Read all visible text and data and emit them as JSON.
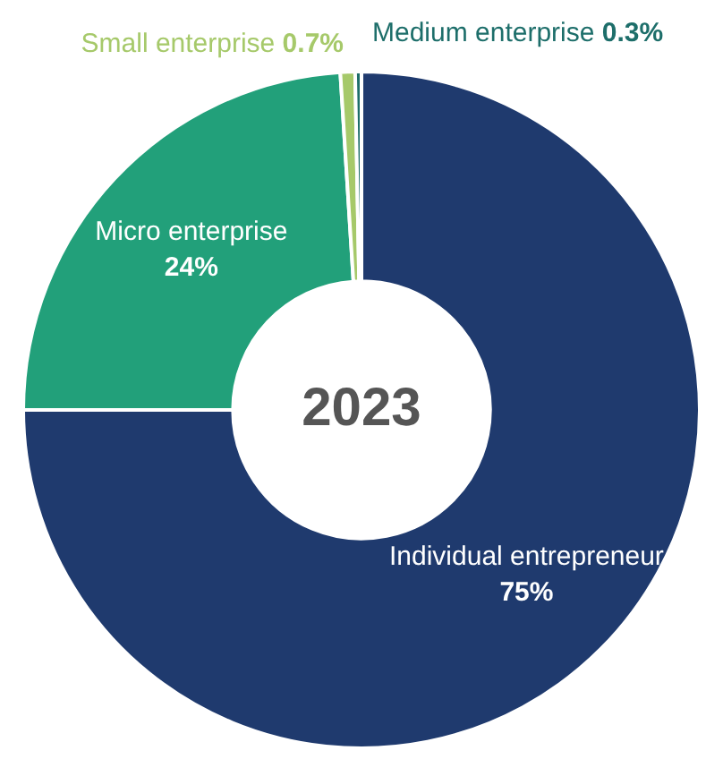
{
  "chart_data": {
    "type": "donut",
    "title": "2023",
    "categories": [
      "Individual entrepreneur",
      "Micro enterprise",
      "Small enterprise",
      "Medium enterprise"
    ],
    "values": [
      75,
      24,
      0.7,
      0.3
    ],
    "colors": [
      "#1f3a6e",
      "#22a07a",
      "#a6c96a",
      "#1d6e6a"
    ],
    "value_labels": [
      "75%",
      "24%",
      "0.7%",
      "0.3%"
    ],
    "legend": false
  }
}
